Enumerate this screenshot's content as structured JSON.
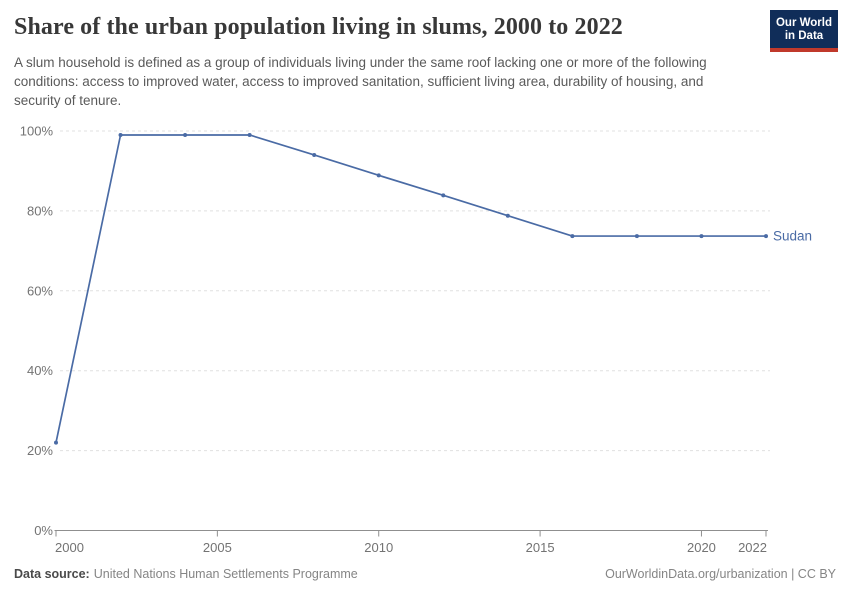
{
  "header": {
    "title": "Share of the urban population living in slums, 2000 to 2022",
    "subtitle": "A slum household is defined as a group of individuals living under the same roof lacking one or more of the following conditions: access to improved water, access to improved sanitation, sufficient living area, durability of housing, and security of tenure.",
    "logo": {
      "line1": "Our World",
      "line2": "in Data",
      "bg_color": "#102d59",
      "accent_color": "#c0392b"
    }
  },
  "chart_data": {
    "type": "line",
    "title": "Share of the urban population living in slums, 2000 to 2022",
    "xlabel": "",
    "ylabel": "",
    "xlim": [
      2000,
      2022
    ],
    "ylim": [
      0,
      100
    ],
    "x_ticks": [
      2000,
      2005,
      2010,
      2015,
      2020,
      2022
    ],
    "y_ticks": [
      0,
      20,
      40,
      60,
      80,
      100
    ],
    "y_tick_suffix": "%",
    "grid": "horizontal-dashed",
    "legend_position": "end-of-line-label",
    "series": [
      {
        "name": "Sudan",
        "color": "#4a6ba5",
        "x": [
          2000,
          2002,
          2004,
          2006,
          2008,
          2010,
          2012,
          2014,
          2016,
          2018,
          2020,
          2022
        ],
        "values": [
          22,
          99,
          99,
          99,
          94,
          88.9,
          83.9,
          78.8,
          73.7,
          73.7,
          73.7,
          73.7
        ]
      }
    ],
    "colors": {
      "gridline": "#e0e0e0",
      "axis": "#8f8f8f",
      "tick_label": "#737373"
    }
  },
  "footer": {
    "data_source_label": "Data source:",
    "data_source_value": "United Nations Human Settlements Programme",
    "attribution": "OurWorldinData.org/urbanization | CC BY"
  }
}
